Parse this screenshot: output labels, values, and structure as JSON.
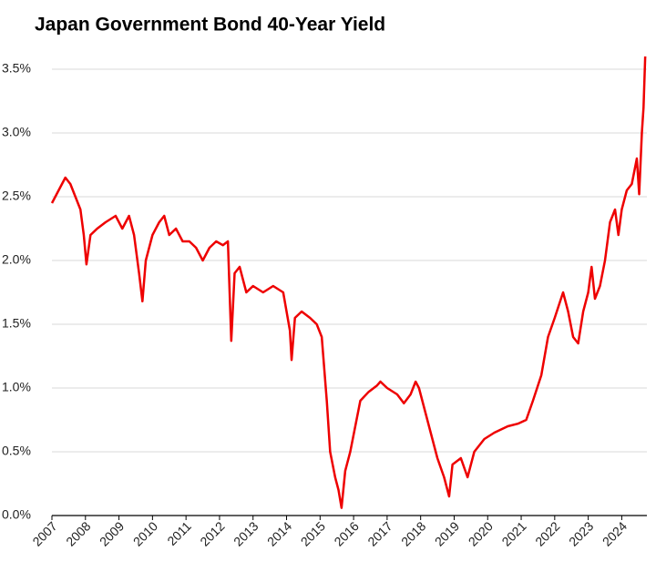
{
  "chart_data": {
    "type": "line",
    "title": "Japan Government Bond 40-Year Yield",
    "color": "#ee0000",
    "grid": true,
    "xlim": [
      2007,
      2024.75
    ],
    "xticks": [
      2007,
      2008,
      2009,
      2010,
      2011,
      2012,
      2013,
      2014,
      2015,
      2016,
      2017,
      2018,
      2019,
      2020,
      2021,
      2022,
      2023,
      2024
    ],
    "ylim": [
      0,
      3.6
    ],
    "yticks": [
      {
        "value": 0,
        "label": "0.0%"
      },
      {
        "value": 0.5,
        "label": "0.5%"
      },
      {
        "value": 1,
        "label": "1.0%"
      },
      {
        "value": 1.5,
        "label": "1.5%"
      },
      {
        "value": 2,
        "label": "2.0%"
      },
      {
        "value": 2.5,
        "label": "2.5%"
      },
      {
        "value": 3,
        "label": "3.0%"
      },
      {
        "value": 3.5,
        "label": "3.5%"
      }
    ],
    "x": [
      2007.0,
      2007.2,
      2007.4,
      2007.55,
      2007.7,
      2007.85,
      2007.95,
      2008.03,
      2008.15,
      2008.35,
      2008.6,
      2008.9,
      2009.1,
      2009.3,
      2009.45,
      2009.6,
      2009.7,
      2009.8,
      2010.0,
      2010.2,
      2010.35,
      2010.5,
      2010.7,
      2010.9,
      2011.1,
      2011.3,
      2011.5,
      2011.7,
      2011.9,
      2012.1,
      2012.25,
      2012.35,
      2012.45,
      2012.6,
      2012.8,
      2013.0,
      2013.3,
      2013.6,
      2013.9,
      2014.0,
      2014.1,
      2014.15,
      2014.25,
      2014.45,
      2014.7,
      2014.9,
      2015.05,
      2015.2,
      2015.3,
      2015.45,
      2015.55,
      2015.64,
      2015.75,
      2015.9,
      2016.05,
      2016.2,
      2016.45,
      2016.7,
      2016.8,
      2017.0,
      2017.3,
      2017.5,
      2017.7,
      2017.85,
      2017.95,
      2018.1,
      2018.3,
      2018.5,
      2018.7,
      2018.85,
      2018.95,
      2019.2,
      2019.4,
      2019.6,
      2019.9,
      2020.2,
      2020.6,
      2020.9,
      2021.15,
      2021.35,
      2021.6,
      2021.8,
      2022.0,
      2022.25,
      2022.4,
      2022.55,
      2022.7,
      2022.85,
      2023.0,
      2023.1,
      2023.2,
      2023.35,
      2023.5,
      2023.65,
      2023.8,
      2023.9,
      2024.0,
      2024.15,
      2024.3,
      2024.45,
      2024.52,
      2024.6,
      2024.65,
      2024.7
    ],
    "values": [
      2.45,
      2.55,
      2.65,
      2.6,
      2.5,
      2.4,
      2.2,
      1.97,
      2.2,
      2.25,
      2.3,
      2.35,
      2.25,
      2.35,
      2.2,
      1.9,
      1.68,
      2.0,
      2.2,
      2.3,
      2.35,
      2.2,
      2.25,
      2.15,
      2.15,
      2.1,
      2.0,
      2.1,
      2.15,
      2.12,
      2.15,
      1.37,
      1.9,
      1.95,
      1.75,
      1.8,
      1.75,
      1.8,
      1.75,
      1.6,
      1.45,
      1.22,
      1.55,
      1.6,
      1.55,
      1.5,
      1.4,
      0.9,
      0.5,
      0.3,
      0.2,
      0.06,
      0.35,
      0.5,
      0.7,
      0.9,
      0.97,
      1.02,
      1.05,
      1.0,
      0.95,
      0.88,
      0.95,
      1.05,
      1.0,
      0.85,
      0.65,
      0.45,
      0.3,
      0.15,
      0.4,
      0.45,
      0.3,
      0.5,
      0.6,
      0.65,
      0.7,
      0.72,
      0.75,
      0.9,
      1.1,
      1.4,
      1.55,
      1.75,
      1.6,
      1.4,
      1.35,
      1.6,
      1.75,
      1.95,
      1.7,
      1.8,
      2.0,
      2.3,
      2.4,
      2.2,
      2.4,
      2.55,
      2.6,
      2.8,
      2.52,
      3.0,
      3.2,
      3.6
    ]
  }
}
